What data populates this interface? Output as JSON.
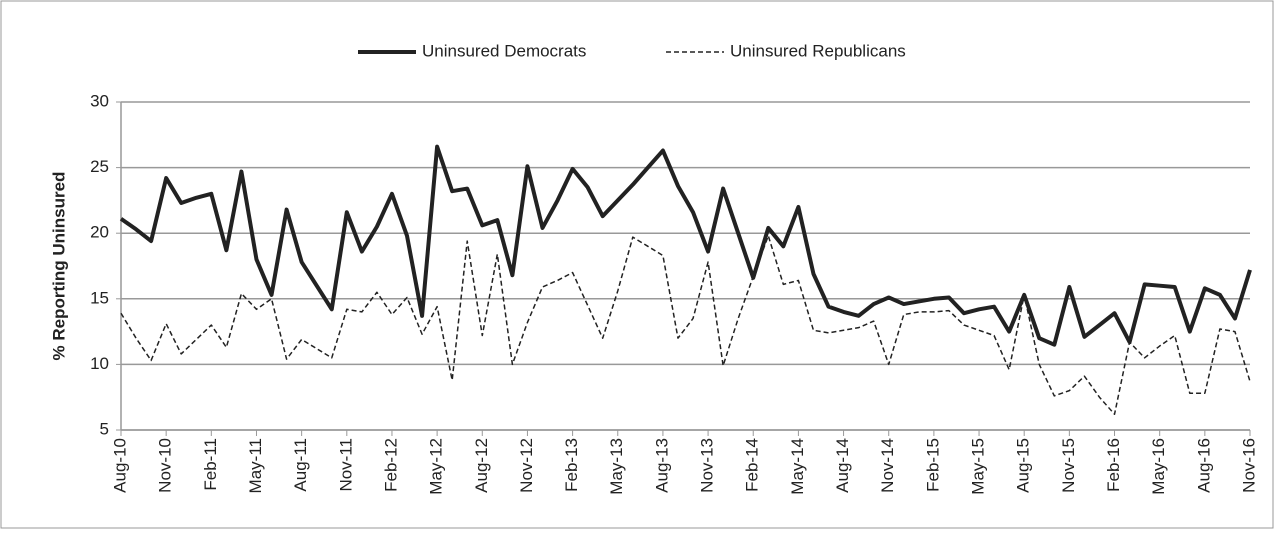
{
  "chart_data": {
    "type": "line",
    "y_label": "% Reporting Uninsured",
    "categories": [
      "Aug-10",
      null,
      null,
      "Nov-10",
      null,
      null,
      "Feb-11",
      null,
      null,
      "May-11",
      null,
      null,
      "Aug-11",
      null,
      null,
      "Nov-11",
      null,
      null,
      "Feb-12",
      null,
      null,
      "May-12",
      null,
      null,
      "Aug-12",
      null,
      null,
      "Nov-12",
      null,
      null,
      "Feb-13",
      null,
      null,
      "May-13",
      null,
      null,
      "Aug-13",
      null,
      null,
      "Nov-13",
      null,
      null,
      "Feb-14",
      null,
      null,
      "May-14",
      null,
      null,
      "Aug-14",
      null,
      null,
      "Nov-14",
      null,
      null,
      "Feb-15",
      null,
      null,
      "May-15",
      null,
      null,
      "Aug-15",
      null,
      null,
      "Nov-15",
      null,
      null,
      "Feb-16",
      null,
      null,
      "May-16",
      null,
      null,
      "Aug-16",
      null,
      null,
      "Nov-16"
    ],
    "series": [
      {
        "name": "Uninsured Democrats",
        "color": "#222222",
        "style": "solid",
        "values": [
          21.1,
          20.3,
          19.4,
          24.2,
          22.3,
          22.7,
          23.0,
          18.7,
          24.7,
          18.0,
          15.3,
          21.8,
          17.8,
          16.0,
          14.2,
          21.6,
          18.6,
          20.5,
          23.0,
          19.8,
          13.7,
          26.6,
          23.2,
          23.4,
          20.6,
          21.0,
          16.8,
          25.1,
          20.4,
          22.5,
          24.9,
          23.5,
          21.3,
          22.5,
          23.7,
          25.0,
          26.3,
          23.6,
          21.6,
          18.6,
          23.4,
          20.0,
          16.6,
          20.4,
          19.0,
          22.0,
          16.9,
          14.4,
          14.0,
          13.7,
          14.6,
          15.1,
          14.6,
          14.8,
          15.0,
          15.1,
          13.9,
          14.2,
          14.4,
          12.5,
          15.3,
          12.0,
          11.5,
          15.9,
          12.1,
          13.0,
          13.9,
          11.7,
          16.1,
          16.0,
          15.9,
          12.5,
          15.8,
          15.3,
          13.5,
          17.2
        ]
      },
      {
        "name": "Uninsured Republicans",
        "color": "#222222",
        "style": "dashed",
        "values": [
          13.9,
          12.0,
          10.3,
          13.1,
          10.8,
          11.9,
          13.0,
          11.3,
          15.4,
          14.2,
          15.0,
          10.4,
          11.9,
          11.2,
          10.5,
          14.2,
          14.0,
          15.5,
          13.8,
          15.1,
          12.3,
          14.4,
          8.8,
          19.4,
          12.2,
          18.4,
          10.0,
          13.2,
          15.9,
          16.4,
          17.0,
          14.5,
          12.0,
          15.6,
          19.7,
          19.0,
          18.3,
          12.0,
          13.5,
          17.8,
          9.9,
          13.5,
          16.7,
          19.8,
          16.1,
          16.4,
          12.6,
          12.4,
          12.6,
          12.8,
          13.3,
          10.0,
          13.8,
          14.0,
          14.0,
          14.1,
          13.0,
          12.6,
          12.2,
          9.6,
          15.3,
          10.0,
          7.6,
          8.0,
          9.1,
          7.5,
          6.2,
          11.7,
          10.5,
          11.4,
          12.2,
          7.8,
          7.8,
          12.7,
          12.5,
          8.7
        ]
      }
    ],
    "ylim": [
      5,
      30
    ],
    "yticks": [
      5,
      10,
      15,
      20,
      25,
      30
    ],
    "grid": true,
    "legend": "top"
  }
}
